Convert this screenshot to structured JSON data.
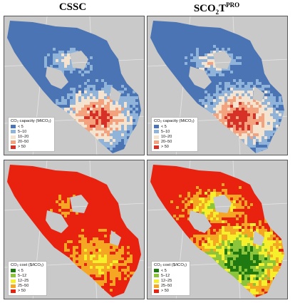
{
  "titles": {
    "left": "CSSC",
    "right_base": "SCO",
    "right_sub": "2",
    "right_mid": "T",
    "right_sup": "PRO"
  },
  "capacity_legend": {
    "title": "CO₂ capacity (MtCO₂)",
    "items": [
      {
        "label": "< 5",
        "color": "#4a74b4"
      },
      {
        "label": "5–10",
        "color": "#8fb3d9"
      },
      {
        "label": "10–20",
        "color": "#f3e3cf"
      },
      {
        "label": "20–50",
        "color": "#f4a27e"
      },
      {
        "label": "> 50",
        "color": "#d73027"
      }
    ]
  },
  "cost_legend": {
    "title": "CO₂ cost ($/tCO₂)",
    "items": [
      {
        "label": "< 5",
        "color": "#1f7a12"
      },
      {
        "label": "5–12",
        "color": "#8cc43a"
      },
      {
        "label": "12–25",
        "color": "#f5f02a"
      },
      {
        "label": "25–50",
        "color": "#f5a623"
      },
      {
        "label": "> 50",
        "color": "#e8220f"
      }
    ]
  },
  "colors": {
    "background": "#c9c9c9",
    "border_lines": "#e6e6e6"
  }
}
